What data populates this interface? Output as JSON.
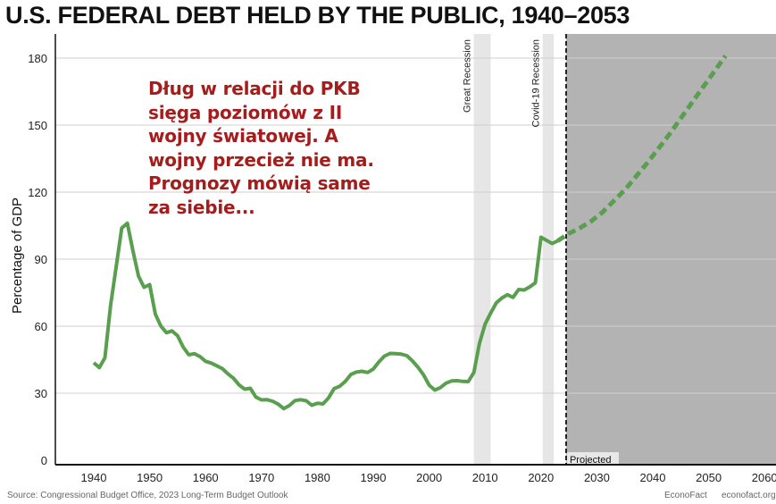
{
  "chart_data": {
    "type": "line",
    "title": "U.S. FEDERAL DEBT HELD BY THE PUBLIC, 1940–2053",
    "ylabel": "Percentage of GDP",
    "xlabel": "",
    "xlim": [
      1933,
      2063
    ],
    "ylim": [
      0,
      190
    ],
    "xticks": [
      1940,
      1950,
      1960,
      1970,
      1980,
      1990,
      2000,
      2010,
      2020,
      2030,
      2040,
      2050,
      2060
    ],
    "yticks": [
      0,
      30,
      60,
      90,
      120,
      150,
      180
    ],
    "grid": "horizontal",
    "series": [
      {
        "style": "solid",
        "color": "#5a9e4f",
        "x": [
          1940,
          1941,
          1942,
          1943,
          1944,
          1945,
          1946,
          1947,
          1948,
          1949,
          1950,
          1951,
          1952,
          1953,
          1954,
          1955,
          1956,
          1957,
          1958,
          1959,
          1960,
          1961,
          1962,
          1963,
          1964,
          1965,
          1966,
          1967,
          1968,
          1969,
          1970,
          1971,
          1972,
          1973,
          1974,
          1975,
          1976,
          1977,
          1978,
          1979,
          1980,
          1981,
          1982,
          1983,
          1984,
          1985,
          1986,
          1987,
          1988,
          1989,
          1990,
          1991,
          1992,
          1993,
          1994,
          1995,
          1996,
          1997,
          1998,
          1999,
          2000,
          2001,
          2002,
          2003,
          2004,
          2005,
          2006,
          2007,
          2008,
          2009,
          2010,
          2011,
          2012,
          2013,
          2014,
          2015,
          2016,
          2017,
          2018,
          2019,
          2020,
          2021,
          2022,
          2023
        ],
        "values": [
          43.6,
          41.5,
          45.9,
          69.2,
          86.3,
          103.9,
          106.1,
          93.9,
          82.4,
          77.4,
          78.6,
          65.5,
          60.1,
          57.1,
          57.9,
          55.7,
          50.6,
          47.2,
          47.7,
          46.4,
          44.3,
          43.5,
          42.3,
          41.0,
          38.7,
          36.7,
          33.7,
          31.8,
          32.2,
          28.3,
          27.0,
          27.1,
          26.4,
          25.1,
          23.1,
          24.5,
          26.7,
          27.1,
          26.6,
          24.6,
          25.5,
          25.2,
          27.9,
          32.1,
          33.1,
          35.3,
          38.4,
          39.5,
          39.8,
          39.3,
          40.8,
          44.0,
          46.6,
          47.8,
          47.7,
          47.5,
          46.8,
          44.5,
          41.6,
          38.2,
          33.6,
          31.4,
          32.5,
          34.5,
          35.5,
          35.6,
          35.3,
          35.2,
          39.3,
          52.3,
          60.9,
          65.9,
          70.4,
          72.6,
          74.1,
          72.9,
          76.4,
          76.2,
          77.6,
          79.4,
          99.8,
          98.4,
          97.0,
          98.2
        ]
      },
      {
        "style": "dashed",
        "color": "#5a9e4f",
        "x": [
          2023,
          2025,
          2027,
          2029,
          2031,
          2033,
          2035,
          2037,
          2039,
          2041,
          2043,
          2045,
          2047,
          2049,
          2051,
          2053
        ],
        "values": [
          98.2,
          101.5,
          104,
          107,
          111,
          116,
          121,
          127,
          133,
          139.5,
          146,
          153,
          160,
          167,
          174,
          181
        ]
      }
    ],
    "shaded_regions": [
      {
        "label": "Great Recession",
        "start": 2008,
        "end": 2011,
        "color": "#e6e6e6"
      },
      {
        "label": "Covid-19 Recession",
        "start": 2020.3,
        "end": 2022.3,
        "color": "#e6e6e6"
      },
      {
        "label": "Projected",
        "start": 2024.5,
        "end": 2063,
        "color": "#b3b3b3"
      }
    ],
    "projection_start": 2024.5
  },
  "annotation": "Dług w relacji do PKB\nsięga poziomów z II\nwojny światowej. A\nwojny przecież nie ma.\nPrognozy mówią same\nza siebie...",
  "footer": {
    "source": "Source: Congressional Budget Office, 2023 Long-Term Budget Outlook",
    "brand": "EconoFact",
    "url": "econofact.org"
  }
}
